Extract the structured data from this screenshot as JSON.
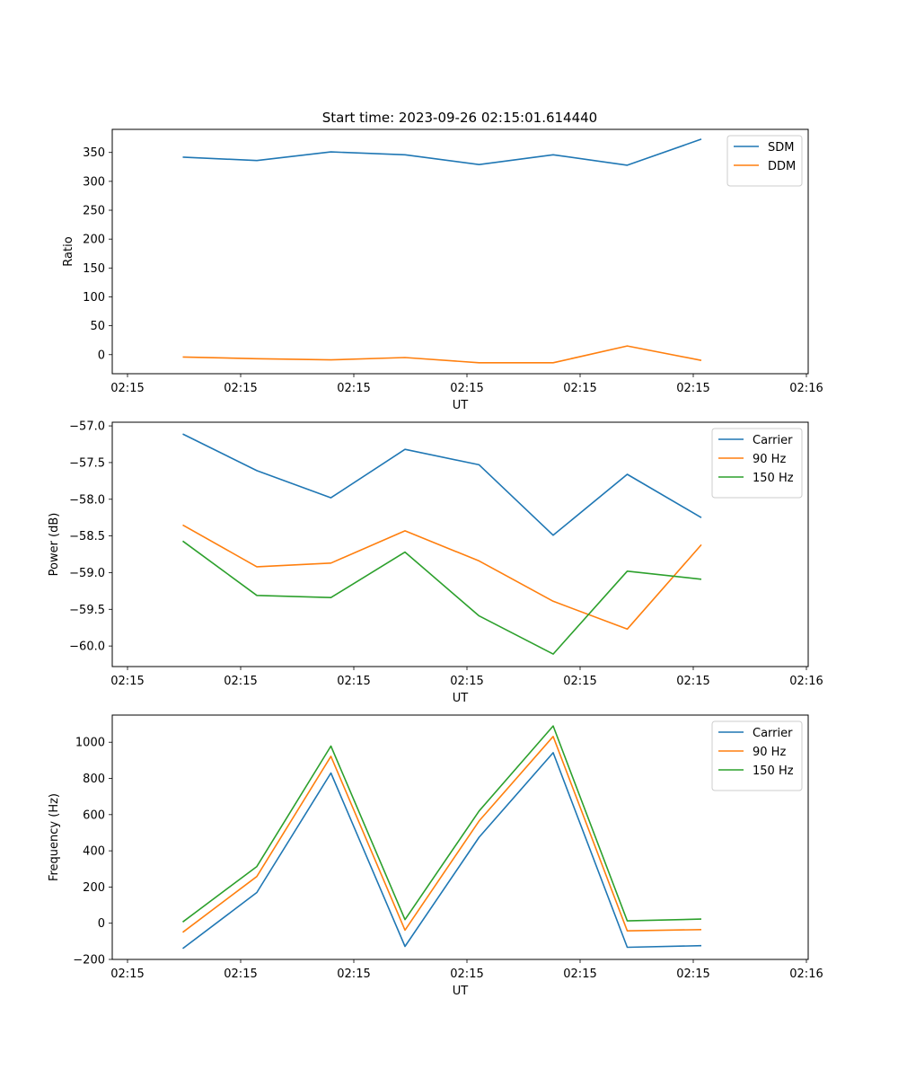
{
  "figure_title": "Start time: 2023-09-26 02:15:01.614440",
  "chart_data": [
    {
      "type": "line",
      "title": "Start time: 2023-09-26 02:15:01.614440",
      "xlabel": "UT",
      "ylabel": "Ratio",
      "x_tick_labels": [
        "02:15",
        "02:15",
        "02:15",
        "02:15",
        "02:15",
        "02:15",
        "02:16"
      ],
      "ylim": [
        -33,
        390
      ],
      "y_ticks": [
        0,
        50,
        100,
        150,
        200,
        250,
        300,
        350
      ],
      "y_tick_labels": [
        "0",
        "50",
        "100",
        "150",
        "200",
        "250",
        "300",
        "350"
      ],
      "legend_position": "top-right",
      "x": [
        1,
        2,
        3,
        4,
        5,
        6,
        7,
        8
      ],
      "series": [
        {
          "name": "SDM",
          "color": "#1f77b4",
          "values": [
            342,
            336,
            351,
            346,
            329,
            346,
            328,
            373
          ]
        },
        {
          "name": "DDM",
          "color": "#ff7f0e",
          "values": [
            -4,
            -7,
            -9,
            -5,
            -14,
            -14,
            15,
            -10
          ]
        }
      ]
    },
    {
      "type": "line",
      "title": "",
      "xlabel": "UT",
      "ylabel": "Power (dB)",
      "x_tick_labels": [
        "02:15",
        "02:15",
        "02:15",
        "02:15",
        "02:15",
        "02:15",
        "02:16"
      ],
      "ylim": [
        -60.28,
        -56.95
      ],
      "y_ticks": [
        -60.0,
        -59.5,
        -59.0,
        -58.5,
        -58.0,
        -57.5,
        -57.0
      ],
      "y_tick_labels": [
        "−60.0",
        "−59.5",
        "−59.0",
        "−58.5",
        "−58.0",
        "−57.5",
        "−57.0"
      ],
      "legend_position": "top-right",
      "x": [
        1,
        2,
        3,
        4,
        5,
        6,
        7,
        8
      ],
      "series": [
        {
          "name": "Carrier",
          "color": "#1f77b4",
          "values": [
            -57.11,
            -57.61,
            -57.98,
            -57.32,
            -57.53,
            -58.49,
            -57.66,
            -58.25
          ]
        },
        {
          "name": "90 Hz",
          "color": "#ff7f0e",
          "values": [
            -58.35,
            -58.92,
            -58.87,
            -58.43,
            -58.84,
            -59.39,
            -59.77,
            -58.62
          ]
        },
        {
          "name": "150 Hz",
          "color": "#2ca02c",
          "values": [
            -58.57,
            -59.31,
            -59.34,
            -58.72,
            -59.59,
            -60.11,
            -58.98,
            -59.09
          ]
        }
      ]
    },
    {
      "type": "line",
      "title": "",
      "xlabel": "UT",
      "ylabel": "Frequency (Hz)",
      "x_tick_labels": [
        "02:15",
        "02:15",
        "02:15",
        "02:15",
        "02:15",
        "02:15",
        "02:16"
      ],
      "ylim": [
        -200,
        1150
      ],
      "y_ticks": [
        -200,
        0,
        200,
        400,
        600,
        800,
        1000
      ],
      "y_tick_labels": [
        "−200",
        "0",
        "200",
        "400",
        "600",
        "800",
        "1000"
      ],
      "legend_position": "top-right",
      "x": [
        1,
        2,
        3,
        4,
        5,
        6,
        7,
        8
      ],
      "series": [
        {
          "name": "Carrier",
          "color": "#1f77b4",
          "values": [
            -140,
            170,
            830,
            -128,
            475,
            942,
            -133,
            -124
          ]
        },
        {
          "name": "90 Hz",
          "color": "#ff7f0e",
          "values": [
            -50,
            258,
            922,
            -38,
            565,
            1032,
            -42,
            -35
          ]
        },
        {
          "name": "150 Hz",
          "color": "#2ca02c",
          "values": [
            7,
            313,
            979,
            20,
            620,
            1090,
            13,
            23
          ]
        }
      ]
    }
  ]
}
